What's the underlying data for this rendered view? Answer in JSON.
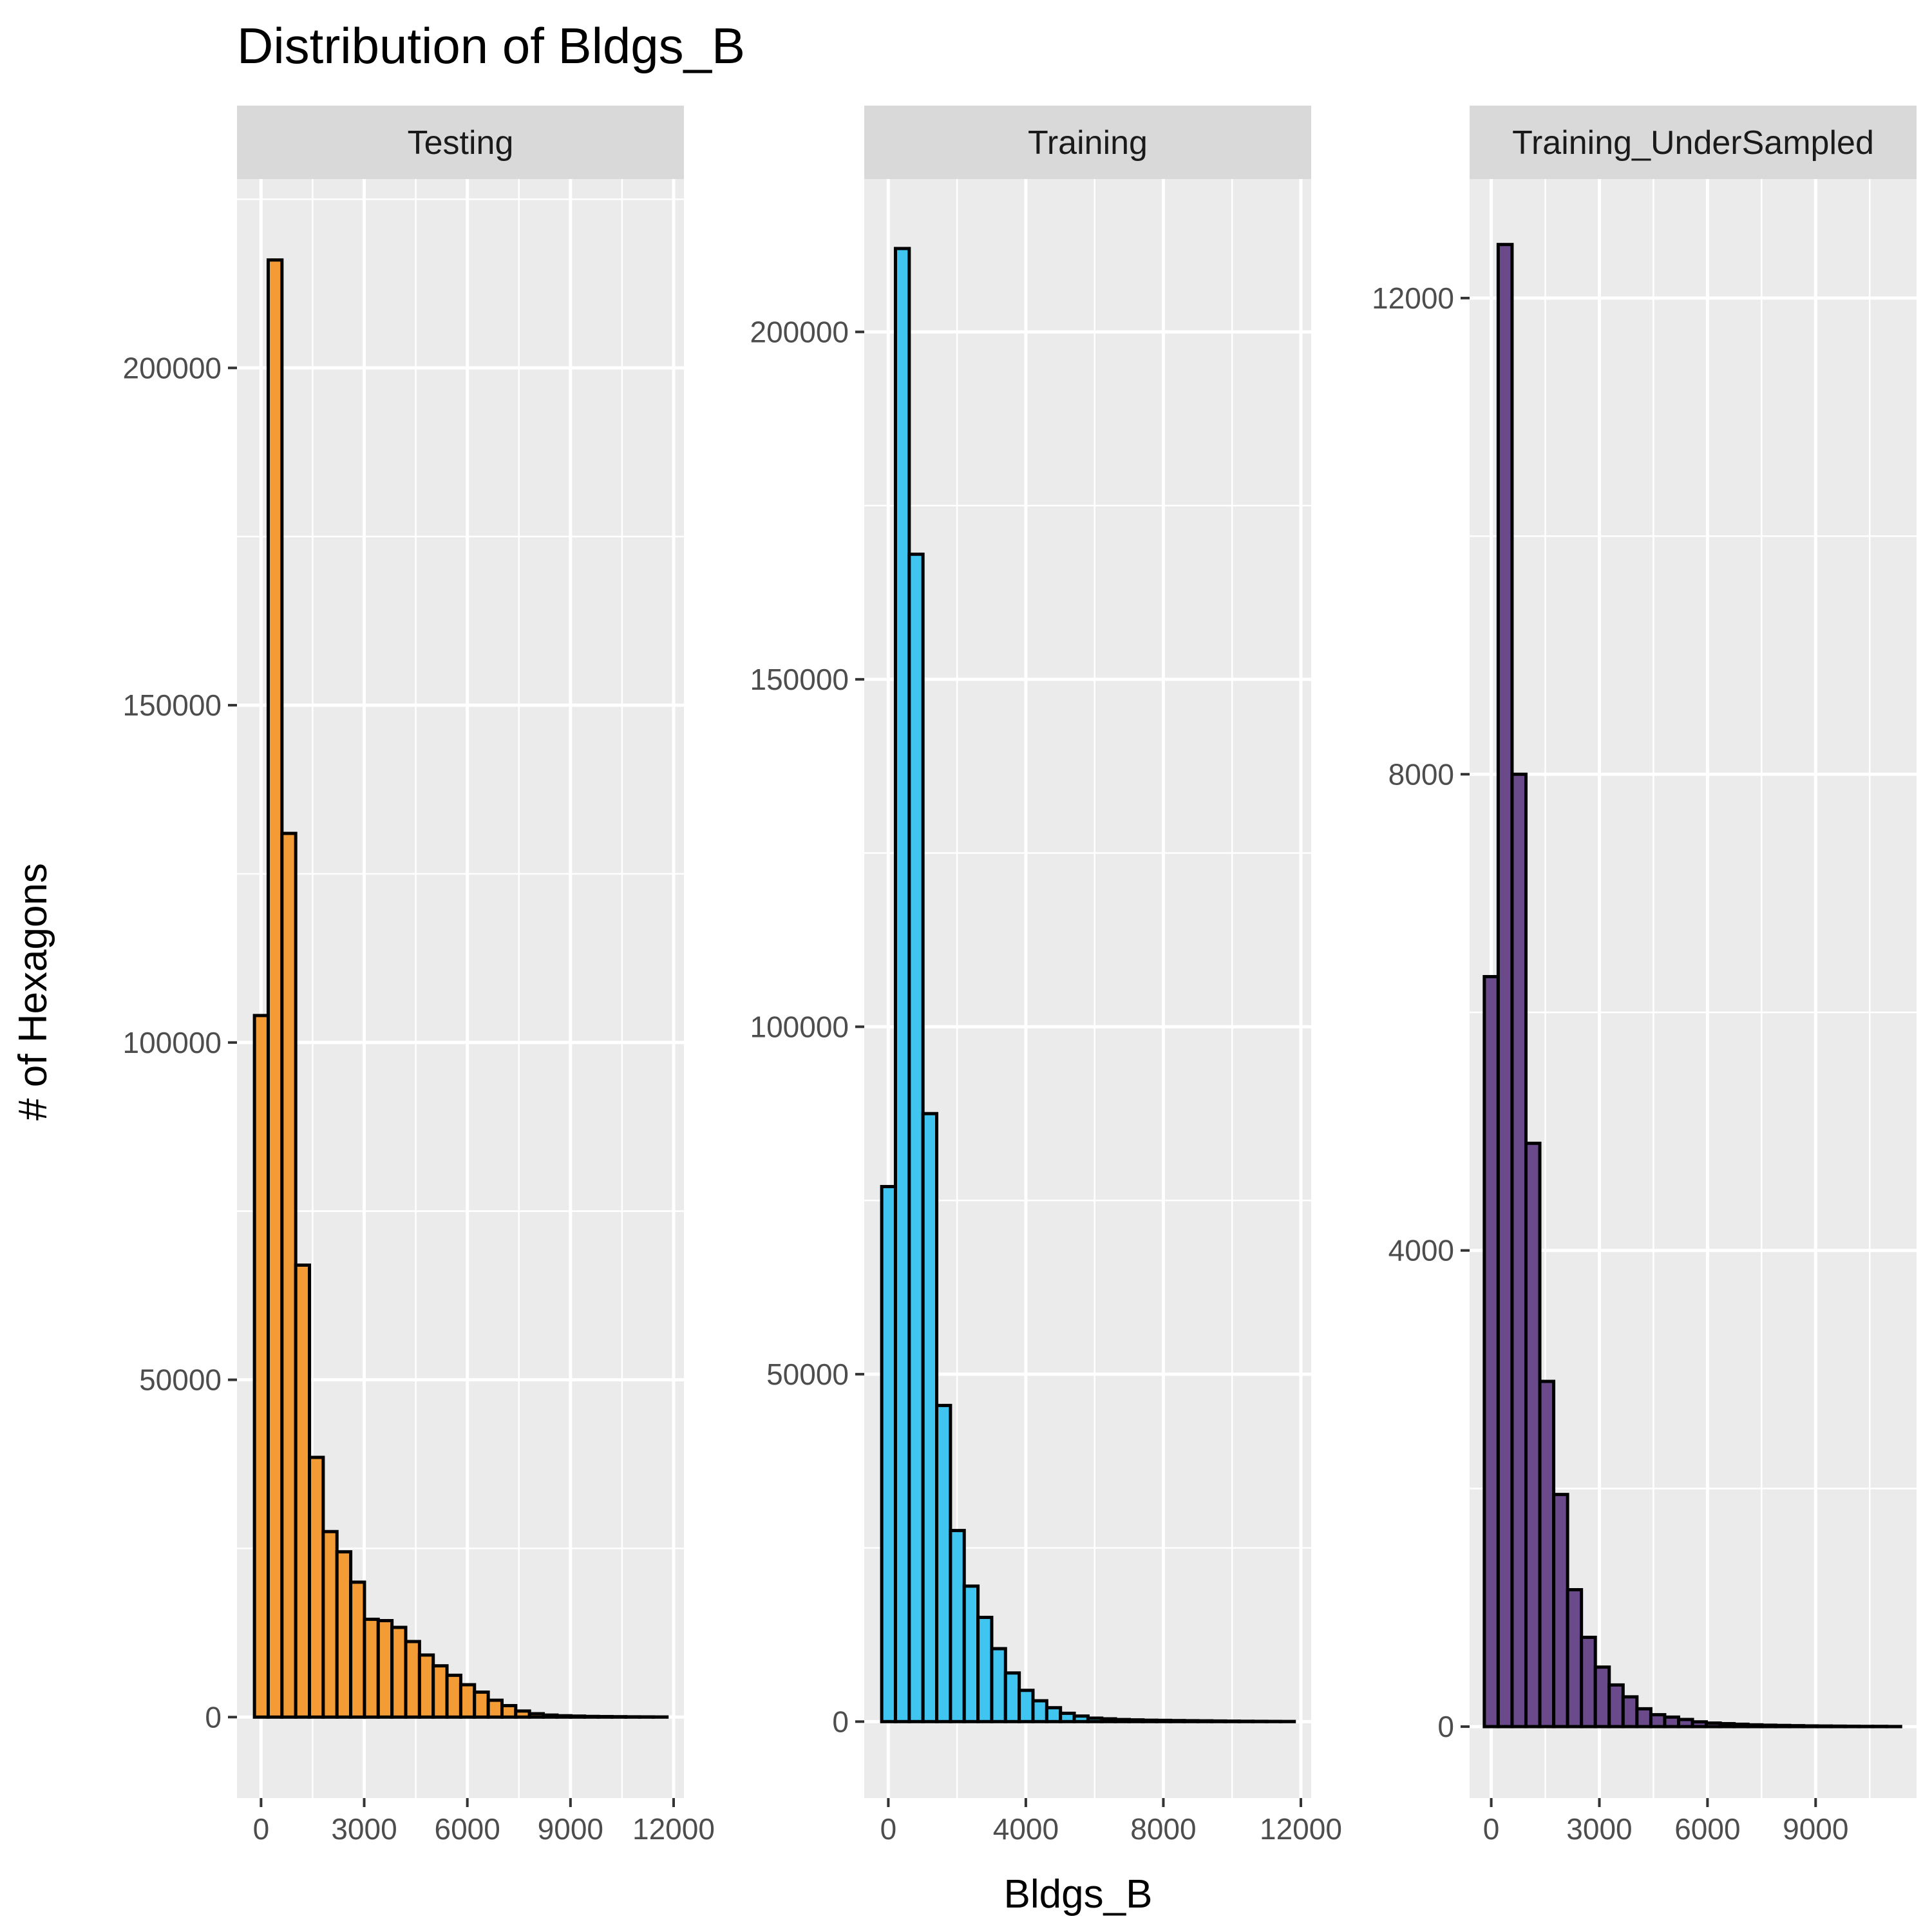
{
  "chart_data": {
    "type": "bar",
    "title": "Distribution of Bldgs_B",
    "xlabel": "Bldgs_B",
    "ylabel": "# of Hexagons",
    "grid": true,
    "legend": "none",
    "facets": [
      {
        "name": "Testing",
        "color": "#F39C35",
        "xlim": [
          -700,
          12300
        ],
        "ylim": [
          -12000,
          228000
        ],
        "x_ticks": [
          0,
          3000,
          6000,
          9000,
          12000
        ],
        "y_ticks": [
          0,
          50000,
          100000,
          150000,
          200000
        ],
        "bin_start": -192,
        "bin_width": 400,
        "values": [
          104000,
          216000,
          131000,
          67000,
          38500,
          27500,
          24500,
          20000,
          14500,
          14300,
          13300,
          11200,
          9200,
          7600,
          6200,
          4800,
          3700,
          2500,
          1700,
          900,
          500,
          300,
          200,
          150,
          100,
          80,
          60,
          40,
          30,
          20
        ]
      },
      {
        "name": "Training",
        "color": "#3FC5F0",
        "xlim": [
          -700,
          12300
        ],
        "ylim": [
          -11000,
          222000
        ],
        "x_ticks": [
          0,
          4000,
          8000,
          12000
        ],
        "y_ticks": [
          0,
          50000,
          100000,
          150000,
          200000
        ],
        "bin_start": -192,
        "bin_width": 400,
        "values": [
          77000,
          212000,
          168000,
          87500,
          45500,
          27500,
          19500,
          15000,
          10500,
          7000,
          4500,
          3000,
          2000,
          1200,
          800,
          500,
          400,
          300,
          250,
          200,
          180,
          150,
          130,
          110,
          90,
          70,
          50,
          40,
          30,
          20
        ]
      },
      {
        "name": "Training_UnderSampled",
        "color": "#6A4A8A",
        "xlim": [
          -600,
          11800
        ],
        "ylim": [
          -600,
          13000
        ],
        "x_ticks": [
          0,
          3000,
          6000,
          9000
        ],
        "y_ticks": [
          0,
          4000,
          8000,
          12000
        ],
        "bin_start": -192,
        "bin_width": 385,
        "values": [
          6300,
          12450,
          8000,
          4900,
          2900,
          1950,
          1150,
          750,
          500,
          350,
          250,
          150,
          100,
          80,
          60,
          40,
          30,
          25,
          20,
          15,
          12,
          10,
          8,
          6,
          5,
          4,
          3,
          2,
          2,
          1
        ]
      }
    ]
  }
}
